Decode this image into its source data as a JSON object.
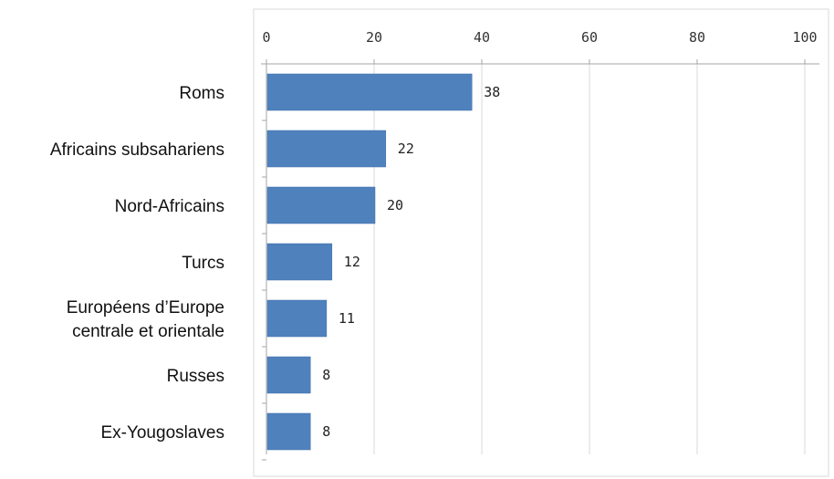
{
  "chart_data": {
    "type": "bar",
    "orientation": "horizontal",
    "categories": [
      [
        "Roms"
      ],
      [
        "Africains subsahariens"
      ],
      [
        "Nord-Africains"
      ],
      [
        "Turcs"
      ],
      [
        "Européens d’Europe",
        "centrale et orientale"
      ],
      [
        "Russes"
      ],
      [
        "Ex-Yougoslaves"
      ]
    ],
    "values": [
      38,
      22,
      20,
      12,
      11,
      8,
      8
    ],
    "data_labels": [
      "38",
      "22",
      "20",
      "12",
      "11",
      "8",
      "8"
    ],
    "xlim": [
      0,
      100
    ],
    "x_ticks": [
      0,
      20,
      40,
      60,
      80,
      100
    ],
    "x_tick_labels": [
      "0",
      "20",
      "40",
      "60",
      "80",
      "100"
    ],
    "x_axis_position": "top",
    "grid": true,
    "legend": "none",
    "title": "",
    "xlabel": "",
    "ylabel": "",
    "colors": {
      "bar": "#4F81BD",
      "bar_edge": "#3F6FA8",
      "grid": "#D9D9D9",
      "axis": "#A6A6A6",
      "frame": "#D9D9D9"
    }
  }
}
